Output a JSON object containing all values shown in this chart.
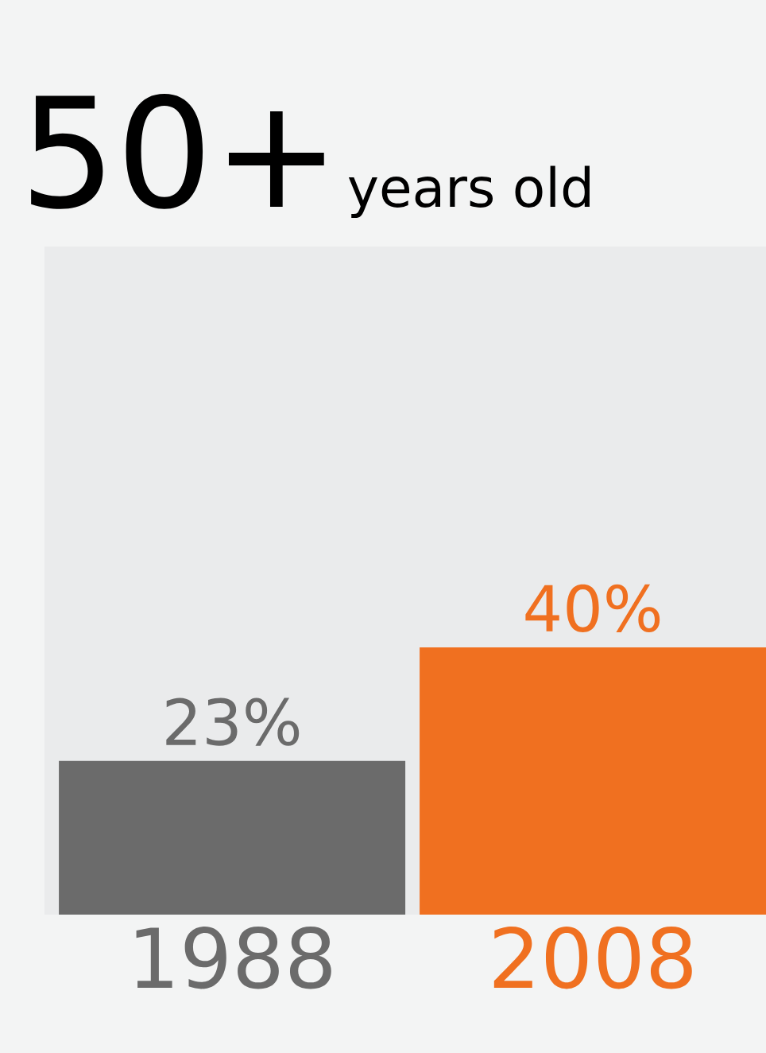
{
  "chart_data": {
    "type": "bar",
    "title": "50+",
    "subtitle": "years old",
    "categories": [
      "1988",
      "2008"
    ],
    "values": [
      23,
      40
    ],
    "colors": [
      "#6b6b6b",
      "#f07020"
    ],
    "value_labels": [
      "23%",
      "40%"
    ],
    "ylim": [
      0,
      100
    ],
    "tick_labels": "x"
  }
}
